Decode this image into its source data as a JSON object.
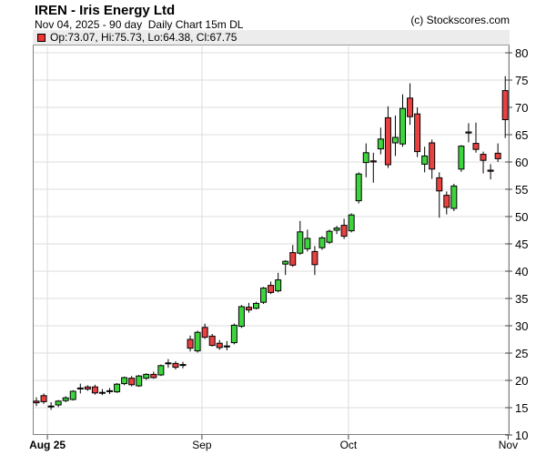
{
  "header": {
    "title": "IREN - Iris Energy Ltd",
    "subtitle": "Nov 04, 2025 - 90 day  Daily Chart 15m DL",
    "copyright": "(c) Stockscores.com"
  },
  "legend": {
    "ohlc_text": "Op:73.07, Hi:75.73, Lo:64.38, Cl:67.75",
    "swatch_color": "#ee3333"
  },
  "chart_data": {
    "type": "candlestick",
    "title": "IREN - Iris Energy Ltd",
    "subtitle": "Nov 04, 2025 - 90 day  Daily Chart 15m DL",
    "x_ticks": [
      {
        "label": "Aug 25",
        "index": 1.5,
        "bold": true
      },
      {
        "label": "Sep",
        "index": 22.6,
        "bold": false
      },
      {
        "label": "Oct",
        "index": 42.6,
        "bold": false
      },
      {
        "label": "Nov",
        "index": 64.4,
        "bold": false
      }
    ],
    "y_axis": {
      "min": 10,
      "max": 84,
      "tick_step": 5,
      "ticks": [
        80,
        75,
        70,
        65,
        60,
        55,
        50,
        45,
        40,
        35,
        30,
        25,
        20,
        15,
        10
      ]
    },
    "colors": {
      "up": "#3ed43e",
      "down": "#ea4040",
      "wick": "#000000",
      "grid": "#dcdcdc"
    },
    "last_candle": {
      "open": 73.07,
      "high": 75.73,
      "low": 64.38,
      "close": 67.75
    },
    "candle_format": "[open, high, low, close]",
    "candles": [
      [
        16.2,
        16.9,
        15.3,
        15.9
      ],
      [
        17.2,
        17.6,
        15.7,
        16.1
      ],
      [
        15.3,
        16.0,
        14.6,
        15.2
      ],
      [
        15.5,
        16.4,
        15.1,
        16.2
      ],
      [
        16.3,
        17.1,
        16.0,
        16.8
      ],
      [
        16.5,
        18.2,
        16.3,
        18.0
      ],
      [
        18.5,
        19.4,
        17.6,
        18.6
      ],
      [
        18.8,
        19.1,
        18.1,
        18.4
      ],
      [
        18.8,
        19.2,
        17.4,
        17.7
      ],
      [
        17.8,
        18.4,
        17.3,
        17.8
      ],
      [
        18.1,
        18.6,
        17.5,
        18.1
      ],
      [
        17.9,
        19.5,
        17.7,
        19.3
      ],
      [
        19.4,
        20.7,
        19.1,
        20.5
      ],
      [
        20.4,
        20.8,
        18.9,
        19.2
      ],
      [
        19.0,
        21.0,
        18.8,
        20.8
      ],
      [
        20.4,
        21.3,
        20.1,
        21.1
      ],
      [
        21.1,
        21.6,
        20.3,
        20.5
      ],
      [
        21.0,
        22.9,
        20.8,
        22.7
      ],
      [
        23.1,
        23.9,
        22.3,
        23.2
      ],
      [
        23.1,
        23.5,
        22.0,
        22.4
      ],
      [
        22.9,
        23.4,
        22.2,
        22.9
      ],
      [
        27.5,
        28.2,
        25.3,
        25.9
      ],
      [
        25.4,
        29.1,
        25.1,
        28.8
      ],
      [
        29.7,
        30.4,
        27.6,
        27.9
      ],
      [
        28.1,
        28.5,
        26.2,
        26.4
      ],
      [
        26.8,
        27.4,
        25.6,
        26.0
      ],
      [
        26.3,
        27.2,
        25.5,
        26.3
      ],
      [
        26.9,
        30.4,
        26.6,
        30.1
      ],
      [
        29.9,
        33.8,
        29.6,
        33.5
      ],
      [
        33.4,
        34.2,
        32.4,
        32.9
      ],
      [
        33.2,
        34.4,
        33.0,
        34.1
      ],
      [
        34.3,
        37.1,
        34.0,
        36.9
      ],
      [
        37.4,
        38.1,
        35.8,
        36.1
      ],
      [
        36.4,
        39.7,
        36.1,
        38.4
      ],
      [
        41.3,
        42.0,
        39.3,
        41.8
      ],
      [
        43.4,
        44.8,
        40.8,
        41.1
      ],
      [
        43.3,
        49.2,
        43.0,
        47.2
      ],
      [
        44.1,
        47.6,
        43.6,
        46.0
      ],
      [
        43.6,
        44.6,
        39.3,
        41.2
      ],
      [
        44.3,
        46.4,
        43.9,
        46.1
      ],
      [
        45.3,
        47.6,
        45.0,
        47.3
      ],
      [
        47.5,
        48.3,
        46.8,
        47.9
      ],
      [
        48.4,
        49.6,
        45.9,
        46.4
      ],
      [
        47.4,
        50.6,
        47.1,
        50.3
      ],
      [
        52.9,
        58.1,
        52.4,
        57.8
      ],
      [
        59.9,
        63.4,
        57.2,
        61.7
      ],
      [
        60.2,
        61.7,
        56.2,
        60.0
      ],
      [
        62.4,
        66.3,
        61.4,
        64.2
      ],
      [
        68.1,
        70.2,
        58.9,
        59.5
      ],
      [
        63.5,
        68.5,
        61.1,
        64.5
      ],
      [
        63.3,
        72.4,
        62.8,
        69.8
      ],
      [
        71.7,
        74.4,
        66.8,
        68.3
      ],
      [
        68.8,
        70.0,
        60.9,
        61.9
      ],
      [
        59.6,
        62.8,
        58.1,
        61.1
      ],
      [
        63.5,
        64.1,
        56.9,
        58.7
      ],
      [
        57.1,
        58.1,
        49.8,
        54.7
      ],
      [
        53.9,
        54.6,
        50.4,
        51.7
      ],
      [
        51.5,
        56.0,
        51.0,
        55.6
      ],
      [
        58.7,
        63.1,
        58.2,
        62.9
      ],
      [
        65.3,
        67.1,
        63.6,
        65.5
      ],
      [
        63.4,
        67.2,
        61.7,
        62.3
      ],
      [
        61.4,
        61.9,
        57.9,
        60.3
      ],
      [
        58.5,
        59.6,
        56.8,
        58.3
      ],
      [
        61.6,
        63.4,
        60.0,
        60.6
      ],
      [
        73.07,
        75.73,
        64.38,
        67.75
      ]
    ]
  }
}
